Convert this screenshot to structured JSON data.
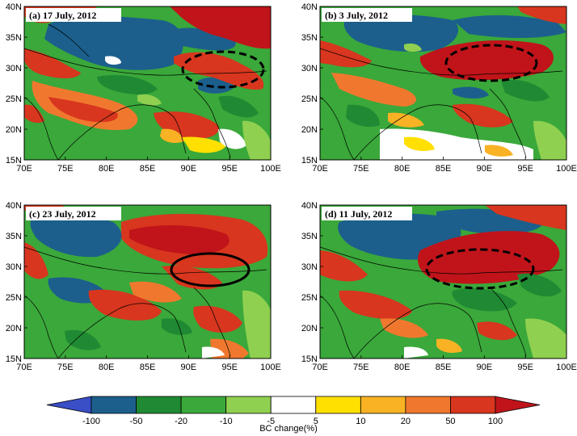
{
  "colors": {
    "c_m100": "#3a4ec6",
    "c_m50": "#1c5f8c",
    "c_m20": "#1f8a33",
    "c_m10": "#3aa83a",
    "c_m5": "#8fd050",
    "c_0": "#ffffff",
    "c_5": "#ffe000",
    "c_10": "#f9b224",
    "c_20": "#f0782e",
    "c_50": "#d8361e",
    "c_100": "#c0141a",
    "border": "#000000"
  },
  "panels": [
    {
      "label": "(a) 17 July, 2012",
      "ellipse": "dashed"
    },
    {
      "label": "(b) 3 July, 2012",
      "ellipse": "dashed"
    },
    {
      "label": "(c) 23 July, 2012",
      "ellipse": "solid"
    },
    {
      "label": "(d) 11 July, 2012",
      "ellipse": "dashed"
    }
  ],
  "axes": {
    "lat_ticks": [
      "40N",
      "35N",
      "30N",
      "25N",
      "20N",
      "15N"
    ],
    "lon_ticks": [
      "70E",
      "75E",
      "80E",
      "85E",
      "90E",
      "95E",
      "100E"
    ]
  },
  "colorbar": {
    "title": "BC change(%)",
    "tick_labels": [
      "-100",
      "-50",
      "-20",
      "-10",
      "-5",
      "5",
      "10",
      "20",
      "50",
      "100"
    ],
    "bins": [
      "c_m100",
      "c_m50",
      "c_m20",
      "c_m10",
      "c_m5",
      "c_0",
      "c_5",
      "c_10",
      "c_20",
      "c_50",
      "c_100"
    ]
  }
}
